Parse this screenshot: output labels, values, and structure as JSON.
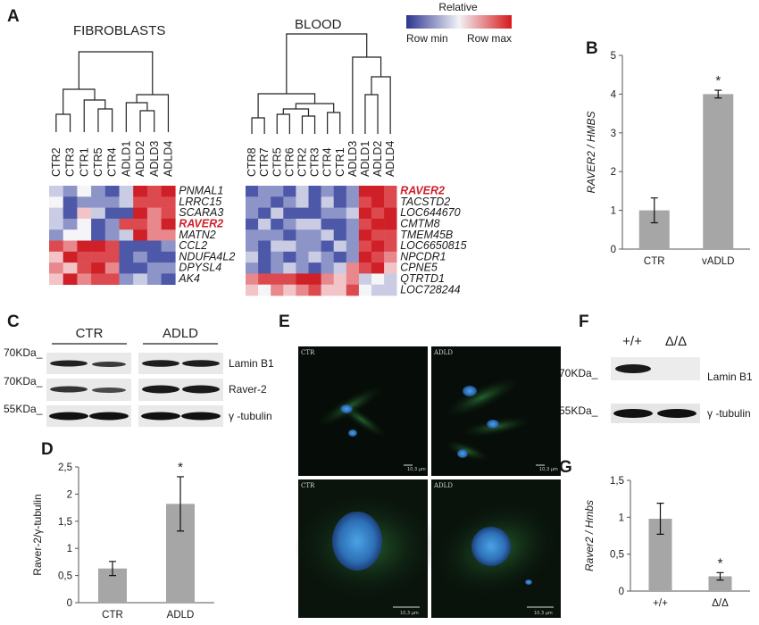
{
  "panel_letters": [
    "A",
    "B",
    "C",
    "D",
    "E",
    "F",
    "G"
  ],
  "heatmaps": {
    "legend": {
      "title": "Relative",
      "min_label": "Row min",
      "max_label": "Row max"
    },
    "fibroblasts": {
      "title": "FIBROBLASTS",
      "samples": [
        "CTR2",
        "CTR3",
        "CTR1",
        "CTR5",
        "CTR4",
        "ADLD1",
        "ADLD2",
        "ADLD3",
        "ADLD4"
      ],
      "genes": [
        "PNMAL1",
        "LRRC15",
        "SCARA3",
        "RAVER2",
        "MATN2",
        "CCL2",
        "NDUFA4L2",
        "DPYSL4",
        "AK4"
      ],
      "highlight_gene": "RAVER2"
    },
    "blood": {
      "title": "BLOOD",
      "samples": [
        "CTR8",
        "CTR7",
        "CTR5",
        "CTR6",
        "CTR2",
        "CTR3",
        "CTR4",
        "CTR1",
        "ADLD3",
        "ADLD1",
        "ADLD2",
        "ADLD4"
      ],
      "genes": [
        "RAVER2",
        "TACSTD2",
        "LOC644670",
        "CMTM8",
        "TMEM45B",
        "LOC6650815",
        "NPCDR1",
        "CPNE5",
        "QTRTD1",
        "LOC728244"
      ],
      "highlight_gene": "RAVER2"
    }
  },
  "western_c": {
    "groups": [
      "CTR",
      "ADLD"
    ],
    "markers": [
      "70KDa_",
      "70KDa_",
      "55KDa_"
    ],
    "proteins": [
      "Lamin B1",
      "Raver-2",
      "γ -tubulin"
    ]
  },
  "western_f": {
    "groups": [
      "+/+",
      "Δ/Δ"
    ],
    "markers": [
      "70KDa_",
      "55KDa_"
    ],
    "proteins": [
      "Lamin B1",
      "γ -tubulin"
    ]
  },
  "micrographs": {
    "labels": [
      "CTR",
      "ADLD",
      "CTR",
      "ADLD"
    ],
    "scale_labels": [
      "10,3 μm",
      "10,3 μm",
      "10,3 μm",
      "10,3 μm"
    ]
  },
  "chart_data": [
    {
      "panel": "B",
      "type": "bar",
      "categories": [
        "CTR",
        "vADLD"
      ],
      "values": [
        1.0,
        4.0
      ],
      "errors": [
        0.32,
        0.1
      ],
      "ylabel": "RAVER2 / HMBS",
      "ylim": [
        0,
        5
      ],
      "yticks": [
        0,
        1,
        2,
        3,
        4,
        5
      ],
      "ytick_labels": [
        "0",
        "1",
        "2",
        "3",
        "4",
        "5"
      ],
      "annotations": [
        "",
        "*"
      ]
    },
    {
      "panel": "D",
      "type": "bar",
      "categories": [
        "CTR",
        "ADLD"
      ],
      "values": [
        0.63,
        1.82
      ],
      "errors": [
        0.13,
        0.5
      ],
      "ylabel": "Raver-2/γ-tubulin",
      "ylim": [
        0,
        2.5
      ],
      "yticks": [
        0,
        0.5,
        1,
        1.5,
        2,
        2.5
      ],
      "ytick_labels": [
        "0",
        "0,5",
        "1",
        "1,5",
        "2",
        "2,5"
      ],
      "annotations": [
        "",
        "*"
      ]
    },
    {
      "panel": "G",
      "type": "bar",
      "categories": [
        "+/+",
        "Δ/Δ"
      ],
      "values": [
        0.98,
        0.2
      ],
      "errors": [
        0.21,
        0.05
      ],
      "ylabel": "Raver2 / Hmbs",
      "ylim": [
        0,
        1.5
      ],
      "yticks": [
        0,
        0.5,
        1,
        1.5
      ],
      "ytick_labels": [
        "0",
        "0,5",
        "1",
        "1,5"
      ],
      "annotations": [
        "",
        "*"
      ]
    }
  ]
}
